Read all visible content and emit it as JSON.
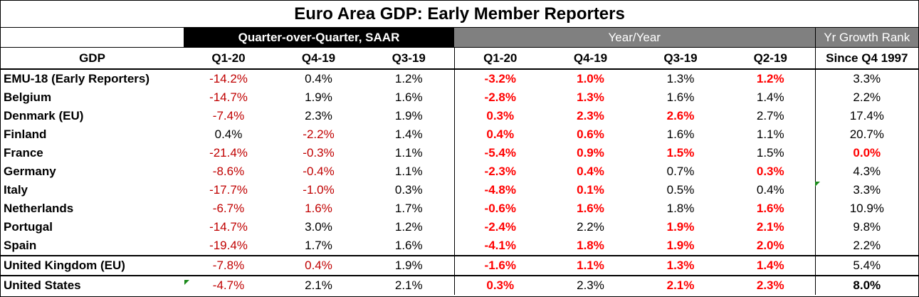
{
  "title": "Euro Area GDP: Early Member Reporters",
  "groups": {
    "qoq": "Quarter-over-Quarter, SAAR",
    "yoy": "Year/Year",
    "rank": "Yr Growth Rank"
  },
  "headers": [
    "GDP",
    "Q1-20",
    "Q4-19",
    "Q3-19",
    "Q1-20",
    "Q4-19",
    "Q3-19",
    "Q2-19",
    "Since Q4 1997"
  ],
  "rows": [
    {
      "name": "EMU-18 (Early Reporters)",
      "v": [
        "-14.2%",
        "0.4%",
        "1.2%",
        "-3.2%",
        "1.0%",
        "1.3%",
        "1.2%",
        "3.3%"
      ]
    },
    {
      "name": "Belgium",
      "v": [
        "-14.7%",
        "1.9%",
        "1.6%",
        "-2.8%",
        "1.3%",
        "1.6%",
        "1.4%",
        "2.2%"
      ]
    },
    {
      "name": "Denmark (EU)",
      "v": [
        "-7.4%",
        "2.3%",
        "1.9%",
        "0.3%",
        "2.3%",
        "2.6%",
        "2.7%",
        "17.4%"
      ]
    },
    {
      "name": "Finland",
      "v": [
        "0.4%",
        "-2.2%",
        "1.4%",
        "0.4%",
        "0.6%",
        "1.6%",
        "1.1%",
        "20.7%"
      ]
    },
    {
      "name": "France",
      "v": [
        "-21.4%",
        "-0.3%",
        "1.1%",
        "-5.4%",
        "0.9%",
        "1.5%",
        "1.5%",
        "0.0%"
      ]
    },
    {
      "name": "Germany",
      "v": [
        "-8.6%",
        "-0.4%",
        "1.1%",
        "-2.3%",
        "0.4%",
        "0.7%",
        "0.3%",
        "4.3%"
      ]
    },
    {
      "name": "Italy",
      "v": [
        "-17.7%",
        "-1.0%",
        "0.3%",
        "-4.8%",
        "0.1%",
        "0.5%",
        "0.4%",
        "3.3%"
      ]
    },
    {
      "name": "Netherlands",
      "v": [
        "-6.7%",
        "1.6%",
        "1.7%",
        "-0.6%",
        "1.6%",
        "1.8%",
        "1.6%",
        "10.9%"
      ]
    },
    {
      "name": "Portugal",
      "v": [
        "-14.7%",
        "3.0%",
        "1.2%",
        "-2.4%",
        "2.2%",
        "1.9%",
        "2.1%",
        "9.8%"
      ]
    },
    {
      "name": "Spain",
      "v": [
        "-19.4%",
        "1.7%",
        "1.6%",
        "-4.1%",
        "1.8%",
        "1.9%",
        "2.0%",
        "2.2%"
      ]
    },
    {
      "name": "United Kingdom (EU)",
      "v": [
        "-7.8%",
        "0.4%",
        "1.9%",
        "-1.6%",
        "1.1%",
        "1.3%",
        "1.4%",
        "5.4%"
      ]
    },
    {
      "name": "United States",
      "v": [
        "-4.7%",
        "2.1%",
        "2.1%",
        "0.3%",
        "2.3%",
        "2.1%",
        "2.3%",
        "8.0%"
      ]
    }
  ],
  "colors": {
    "negative": "#c00000",
    "highlight": "#ff0000",
    "qoq_header_bg": "#000000",
    "yoy_header_bg": "#808080"
  }
}
